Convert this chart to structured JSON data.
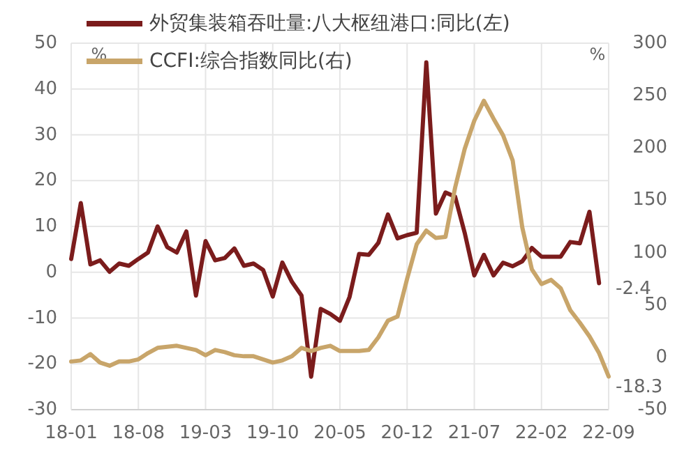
{
  "chart_data": {
    "type": "line",
    "categories": [
      "18-01",
      null,
      null,
      null,
      null,
      null,
      null,
      "18-08",
      null,
      null,
      null,
      null,
      null,
      null,
      "19-03",
      null,
      null,
      null,
      null,
      null,
      null,
      "19-10",
      null,
      null,
      null,
      null,
      null,
      null,
      "20-05",
      null,
      null,
      null,
      null,
      null,
      null,
      "20-12",
      null,
      null,
      null,
      null,
      null,
      null,
      "21-07",
      null,
      null,
      null,
      null,
      null,
      null,
      "22-02",
      null,
      null,
      null,
      null,
      null,
      null,
      "22-09"
    ],
    "series": [
      {
        "name": "外贸集装箱吞吐量:八大枢纽港口:同比(左)",
        "color": "#7b1c1c",
        "values": [
          2.9,
          15.1,
          1.7,
          2.6,
          0.1,
          1.9,
          1.4,
          2.9,
          4.3,
          10,
          5.5,
          4.3,
          8.9,
          -5.1,
          6.8,
          2.6,
          3.1,
          5.2,
          1.4,
          1.9,
          0.5,
          -5.3,
          2.1,
          -2.1,
          -5.1,
          -22.8,
          -8,
          -9.1,
          -10.6,
          -5.4,
          4,
          3.8,
          6.4,
          12.6,
          7.4,
          8.1,
          8.6,
          45.8,
          12.8,
          17.4,
          16.5,
          8.6,
          -0.7,
          3.8,
          -0.7,
          2.1,
          1.3,
          2.4,
          5.3,
          3.4,
          3.4,
          3.4,
          6.6,
          6.3,
          13.2,
          -2.4,
          null
        ],
        "value_labels": [
          null,
          null,
          null,
          null,
          null,
          null,
          null,
          null,
          null,
          null,
          null,
          null,
          null,
          null,
          null,
          null,
          null,
          null,
          null,
          null,
          null,
          null,
          null,
          null,
          null,
          null,
          null,
          null,
          null,
          null,
          null,
          null,
          null,
          null,
          null,
          null,
          null,
          null,
          null,
          null,
          null,
          null,
          null,
          null,
          null,
          null,
          null,
          null,
          null,
          null,
          null,
          null,
          null,
          null,
          null,
          "-2.4",
          null
        ]
      },
      {
        "name": "CCFI:综合指数同比(右)",
        "color": "#c8a56a",
        "axis": "y2",
        "values": [
          -4,
          -3,
          3,
          -5,
          -8,
          -4,
          -4,
          -2,
          4,
          9,
          10,
          11,
          9,
          7,
          2,
          7,
          5,
          2,
          1,
          1,
          -2,
          -5,
          -3,
          1,
          9,
          6,
          9,
          11,
          6,
          6,
          6,
          7,
          19,
          35,
          39,
          75,
          108,
          121,
          114,
          115,
          162,
          199,
          226,
          245,
          228,
          212,
          188,
          124,
          84,
          70,
          74,
          66,
          45,
          33,
          20,
          4,
          -18.3
        ],
        "value_labels": [
          null,
          null,
          null,
          null,
          null,
          null,
          null,
          null,
          null,
          null,
          null,
          null,
          null,
          null,
          null,
          null,
          null,
          null,
          null,
          null,
          null,
          null,
          null,
          null,
          null,
          null,
          null,
          null,
          null,
          null,
          null,
          null,
          null,
          null,
          null,
          null,
          null,
          null,
          null,
          null,
          null,
          null,
          null,
          null,
          null,
          null,
          null,
          null,
          null,
          null,
          null,
          null,
          null,
          null,
          null,
          null,
          "-18.3"
        ]
      }
    ],
    "ylim": [
      -30,
      50
    ],
    "yticks": [
      -30,
      -20,
      -10,
      0,
      10,
      20,
      30,
      40,
      50
    ],
    "y2lim": [
      -50,
      300
    ],
    "y2ticks": [
      -50,
      0,
      50,
      100,
      150,
      200,
      250,
      300
    ],
    "ylabel": "%",
    "y2label": "%",
    "grid": true,
    "legend": "top",
    "marker": "none",
    "line_style": "solid"
  }
}
